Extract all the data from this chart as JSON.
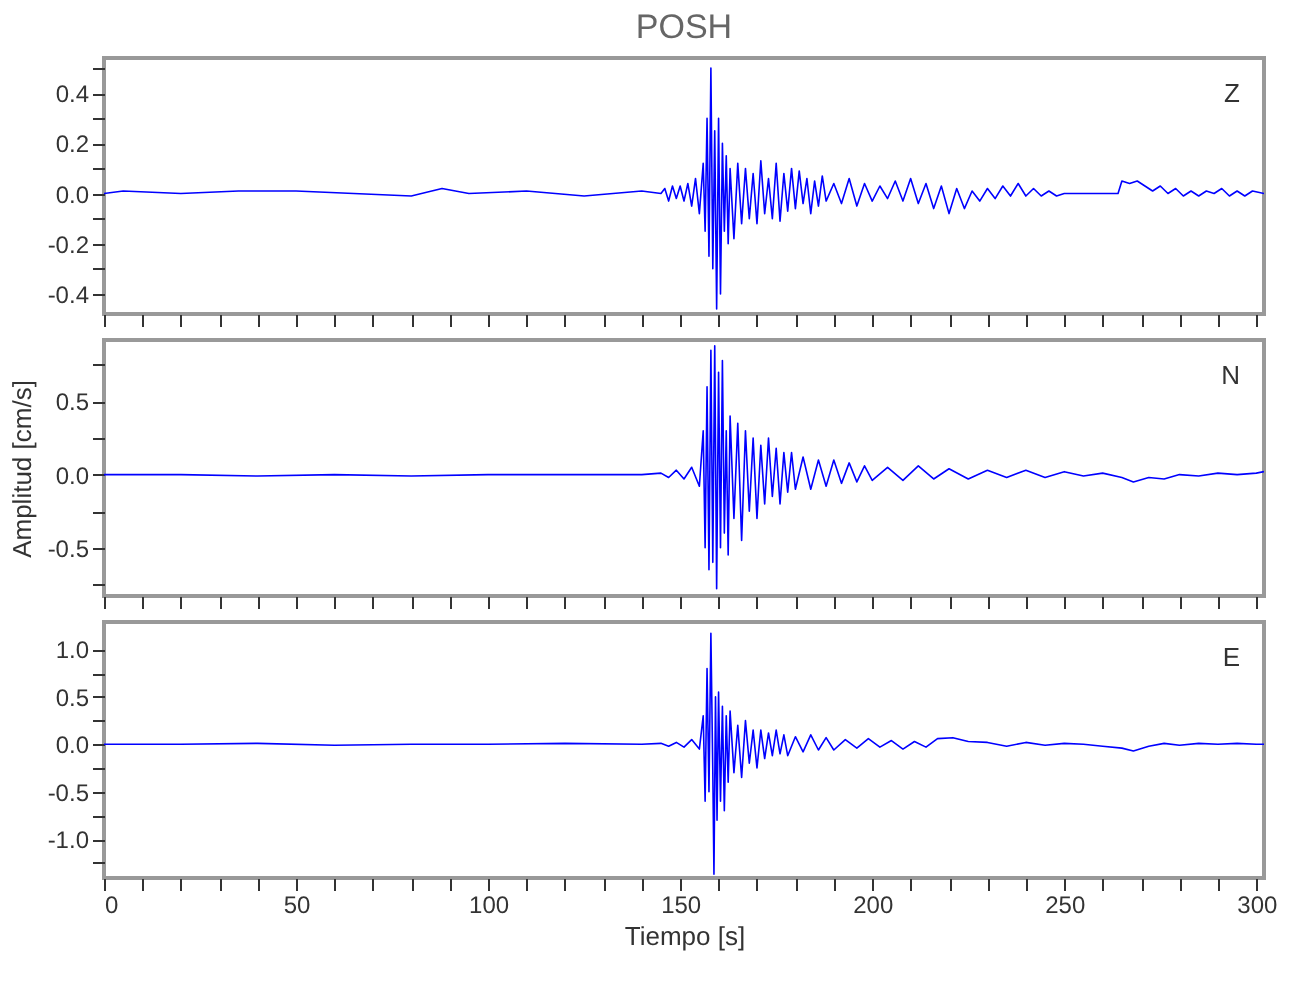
{
  "chart_data": [
    {
      "type": "line",
      "title": "POSH",
      "annotations": [
        "Z"
      ],
      "xlim": [
        0,
        302
      ],
      "xticks": [
        0,
        {
          "value": 10,
          "label": null
        },
        {
          "value": 20,
          "label": null
        },
        {
          "value": 30,
          "label": null
        },
        {
          "value": 40,
          "label": null
        },
        50,
        {
          "value": 60,
          "label": null
        },
        {
          "value": 70,
          "label": null
        },
        {
          "value": 80,
          "label": null
        },
        {
          "value": 90,
          "label": null
        },
        100,
        {
          "value": 110,
          "label": null
        },
        {
          "value": 120,
          "label": null
        },
        {
          "value": 130,
          "label": null
        },
        {
          "value": 140,
          "label": null
        },
        150,
        {
          "value": 160,
          "label": null
        },
        {
          "value": 170,
          "label": null
        },
        {
          "value": 180,
          "label": null
        },
        {
          "value": 190,
          "label": null
        },
        200,
        {
          "value": 210,
          "label": null
        },
        {
          "value": 220,
          "label": null
        },
        {
          "value": 230,
          "label": null
        },
        {
          "value": 240,
          "label": null
        },
        250,
        {
          "value": 260,
          "label": null
        },
        {
          "value": 270,
          "label": null
        },
        {
          "value": 280,
          "label": null
        },
        {
          "value": 290,
          "label": null
        },
        300
      ],
      "ylim": [
        -0.48,
        0.54
      ],
      "yticks": [
        -0.4,
        {
          "value": -0.3,
          "label": null
        },
        -0.2,
        {
          "value": -0.1,
          "label": null
        },
        {
          "value": 0,
          "label": "0.0"
        },
        {
          "value": 0.1,
          "label": null
        },
        0.2,
        {
          "value": 0.3,
          "label": null
        },
        0.4,
        {
          "value": 0.5,
          "label": null
        }
      ],
      "tick_labels": "y",
      "grid": false,
      "x": [
        0,
        5,
        20,
        35,
        50,
        65,
        80,
        88,
        95,
        110,
        125,
        140,
        145,
        146,
        147,
        148,
        149,
        150,
        151,
        152,
        153,
        154,
        155,
        156,
        156.5,
        157,
        157.5,
        158,
        158.5,
        159,
        159.5,
        160,
        160.5,
        161,
        161.5,
        162,
        162.5,
        163,
        164,
        165,
        166,
        167,
        168,
        169,
        170,
        171,
        172,
        173,
        174,
        175,
        176,
        177,
        178,
        179,
        180,
        181,
        182,
        183,
        184,
        185,
        186,
        187,
        188,
        190,
        192,
        194,
        196,
        198,
        200,
        202,
        204,
        206,
        208,
        210,
        212,
        214,
        216,
        218,
        220,
        222,
        224,
        226,
        228,
        230,
        232,
        234,
        236,
        238,
        240,
        242,
        244,
        246,
        248,
        250,
        255,
        260,
        264,
        265,
        267,
        269,
        271,
        273,
        275,
        277,
        279,
        281,
        283,
        285,
        287,
        289,
        291,
        293,
        295,
        297,
        299,
        302
      ],
      "series": [
        {
          "color": "#0000ff",
          "values": [
            0,
            0.01,
            0,
            0.01,
            0.01,
            0,
            -0.01,
            0.02,
            0,
            0.01,
            -0.01,
            0.01,
            0,
            0.02,
            -0.03,
            0.03,
            -0.02,
            0.03,
            -0.03,
            0.04,
            -0.05,
            0.06,
            -0.08,
            0.12,
            -0.15,
            0.3,
            -0.25,
            0.5,
            -0.3,
            0.25,
            -0.46,
            0.3,
            -0.4,
            0.2,
            -0.15,
            0.15,
            -0.2,
            0.1,
            -0.18,
            0.12,
            -0.12,
            0.1,
            -0.1,
            0.08,
            -0.12,
            0.13,
            -0.08,
            0.06,
            -0.1,
            0.12,
            -0.11,
            0.08,
            -0.07,
            0.1,
            -0.06,
            0.09,
            -0.04,
            0.06,
            -0.08,
            0.05,
            -0.05,
            0.07,
            -0.03,
            0.04,
            -0.04,
            0.06,
            -0.05,
            0.04,
            -0.03,
            0.03,
            -0.02,
            0.05,
            -0.03,
            0.06,
            -0.04,
            0.04,
            -0.06,
            0.03,
            -0.08,
            0.02,
            -0.06,
            0.01,
            -0.03,
            0.02,
            -0.02,
            0.03,
            -0.01,
            0.04,
            -0.01,
            0.02,
            -0.01,
            0.01,
            -0.01,
            0,
            0,
            0,
            0,
            0.05,
            0.04,
            0.05,
            0.03,
            0.01,
            0.03,
            0,
            0.02,
            -0.01,
            0.01,
            -0.01,
            0.01,
            0,
            0.02,
            -0.01,
            0.01,
            -0.01,
            0.01,
            0
          ]
        }
      ]
    },
    {
      "type": "line",
      "ylabel": "Amplitud [cm/s]",
      "annotations": [
        "N"
      ],
      "xlim": [
        0,
        302
      ],
      "xticks": [
        0,
        {
          "value": 10,
          "label": null
        },
        {
          "value": 20,
          "label": null
        },
        {
          "value": 30,
          "label": null
        },
        {
          "value": 40,
          "label": null
        },
        50,
        {
          "value": 60,
          "label": null
        },
        {
          "value": 70,
          "label": null
        },
        {
          "value": 80,
          "label": null
        },
        {
          "value": 90,
          "label": null
        },
        100,
        {
          "value": 110,
          "label": null
        },
        {
          "value": 120,
          "label": null
        },
        {
          "value": 130,
          "label": null
        },
        {
          "value": 140,
          "label": null
        },
        150,
        {
          "value": 160,
          "label": null
        },
        {
          "value": 170,
          "label": null
        },
        {
          "value": 180,
          "label": null
        },
        {
          "value": 190,
          "label": null
        },
        200,
        {
          "value": 210,
          "label": null
        },
        {
          "value": 220,
          "label": null
        },
        {
          "value": 230,
          "label": null
        },
        {
          "value": 240,
          "label": null
        },
        250,
        {
          "value": 260,
          "label": null
        },
        {
          "value": 270,
          "label": null
        },
        {
          "value": 280,
          "label": null
        },
        {
          "value": 290,
          "label": null
        },
        300
      ],
      "ylim": [
        -0.83,
        0.92
      ],
      "yticks": [
        {
          "value": -0.75,
          "label": null
        },
        -0.5,
        {
          "value": -0.25,
          "label": null
        },
        {
          "value": 0,
          "label": "0.0"
        },
        {
          "value": 0.25,
          "label": null
        },
        0.5,
        {
          "value": 0.75,
          "label": null
        }
      ],
      "tick_labels": "y",
      "grid": false,
      "x": [
        0,
        20,
        40,
        60,
        80,
        100,
        120,
        140,
        145,
        147,
        149,
        151,
        153,
        155,
        156,
        156.5,
        157,
        157.5,
        158,
        158.5,
        159,
        159.5,
        160,
        160.5,
        161,
        161.5,
        162,
        162.5,
        163,
        164,
        165,
        166,
        167,
        168,
        169,
        170,
        171,
        172,
        173,
        174,
        175,
        176,
        177,
        178,
        179,
        180,
        182,
        184,
        186,
        188,
        190,
        192,
        194,
        196,
        198,
        200,
        204,
        208,
        212,
        216,
        220,
        225,
        230,
        235,
        240,
        245,
        250,
        255,
        260,
        265,
        268,
        272,
        276,
        280,
        285,
        290,
        295,
        300,
        302
      ],
      "series": [
        {
          "color": "#0000ff",
          "values": [
            0,
            0,
            -0.01,
            0,
            -0.01,
            0,
            0,
            0,
            0.01,
            -0.02,
            0.03,
            -0.03,
            0.05,
            -0.08,
            0.3,
            -0.5,
            0.6,
            -0.65,
            0.85,
            -0.6,
            0.88,
            -0.78,
            0.7,
            -0.5,
            0.78,
            -0.4,
            0.3,
            -0.55,
            0.4,
            -0.3,
            0.35,
            -0.45,
            0.3,
            -0.25,
            0.25,
            -0.3,
            0.2,
            -0.2,
            0.25,
            -0.15,
            0.18,
            -0.2,
            0.15,
            -0.12,
            0.15,
            -0.1,
            0.12,
            -0.1,
            0.1,
            -0.08,
            0.1,
            -0.06,
            0.08,
            -0.05,
            0.06,
            -0.04,
            0.05,
            -0.04,
            0.06,
            -0.03,
            0.04,
            -0.03,
            0.03,
            -0.02,
            0.03,
            -0.02,
            0.02,
            -0.01,
            0.01,
            -0.02,
            -0.05,
            -0.02,
            -0.03,
            0,
            -0.01,
            0.01,
            0,
            0.01,
            0.02
          ]
        }
      ]
    },
    {
      "type": "line",
      "xlabel": "Tiempo [s]",
      "annotations": [
        "E"
      ],
      "xlim": [
        0,
        302
      ],
      "xticks": [
        0,
        {
          "value": 10,
          "label": null
        },
        {
          "value": 20,
          "label": null
        },
        {
          "value": 30,
          "label": null
        },
        {
          "value": 40,
          "label": null
        },
        50,
        {
          "value": 60,
          "label": null
        },
        {
          "value": 70,
          "label": null
        },
        {
          "value": 80,
          "label": null
        },
        {
          "value": 90,
          "label": null
        },
        100,
        {
          "value": 110,
          "label": null
        },
        {
          "value": 120,
          "label": null
        },
        {
          "value": 130,
          "label": null
        },
        {
          "value": 140,
          "label": null
        },
        150,
        {
          "value": 160,
          "label": null
        },
        {
          "value": 170,
          "label": null
        },
        {
          "value": 180,
          "label": null
        },
        {
          "value": 190,
          "label": null
        },
        200,
        {
          "value": 210,
          "label": null
        },
        {
          "value": 220,
          "label": null
        },
        {
          "value": 230,
          "label": null
        },
        {
          "value": 240,
          "label": null
        },
        250,
        {
          "value": 260,
          "label": null
        },
        {
          "value": 270,
          "label": null
        },
        {
          "value": 280,
          "label": null
        },
        {
          "value": 290,
          "label": null
        },
        300
      ],
      "ylim": [
        -1.41,
        1.29
      ],
      "yticks": [
        {
          "value": -1.25,
          "label": null
        },
        {
          "value": -1,
          "label": "-1.0"
        },
        {
          "value": -0.75,
          "label": null
        },
        -0.5,
        {
          "value": -0.25,
          "label": null
        },
        {
          "value": 0,
          "label": "0.0"
        },
        {
          "value": 0.25,
          "label": null
        },
        0.5,
        {
          "value": 0.75,
          "label": null
        },
        {
          "value": 1,
          "label": "1.0"
        }
      ],
      "grid": false,
      "x": [
        0,
        20,
        40,
        60,
        80,
        100,
        120,
        140,
        145,
        147,
        149,
        151,
        153,
        155,
        156,
        156.5,
        157,
        157.5,
        158,
        158.5,
        158.8,
        159.2,
        159.6,
        160,
        160.5,
        161,
        161.5,
        162,
        162.5,
        163,
        164,
        165,
        166,
        167,
        168,
        169,
        170,
        171,
        172,
        173,
        174,
        175,
        176,
        177,
        178,
        180,
        182,
        184,
        186,
        188,
        190,
        193,
        196,
        199,
        202,
        205,
        208,
        211,
        214,
        217,
        221,
        225,
        230,
        235,
        240,
        245,
        250,
        255,
        260,
        265,
        268,
        272,
        276,
        280,
        285,
        290,
        295,
        300,
        302
      ],
      "series": [
        {
          "color": "#0000ff",
          "values": [
            0,
            0,
            0.01,
            -0.01,
            0,
            0,
            0.01,
            0,
            0.01,
            -0.02,
            0.02,
            -0.03,
            0.05,
            -0.05,
            0.3,
            -0.6,
            0.8,
            -0.5,
            1.17,
            -0.3,
            -1.37,
            0.5,
            -0.8,
            0.55,
            -0.6,
            0.4,
            -0.7,
            0.3,
            -0.4,
            0.35,
            -0.3,
            0.2,
            -0.35,
            0.25,
            -0.2,
            0.15,
            -0.25,
            0.15,
            -0.15,
            0.12,
            -0.12,
            0.15,
            -0.1,
            0.1,
            -0.12,
            0.08,
            -0.08,
            0.1,
            -0.06,
            0.07,
            -0.06,
            0.05,
            -0.04,
            0.06,
            -0.03,
            0.04,
            -0.05,
            0.03,
            -0.03,
            0.06,
            0.07,
            0.03,
            0.02,
            -0.02,
            0.02,
            -0.01,
            0.01,
            0,
            -0.02,
            -0.04,
            -0.07,
            -0.02,
            0.01,
            -0.01,
            0.01,
            0,
            0.01,
            0,
            0
          ]
        }
      ]
    }
  ]
}
